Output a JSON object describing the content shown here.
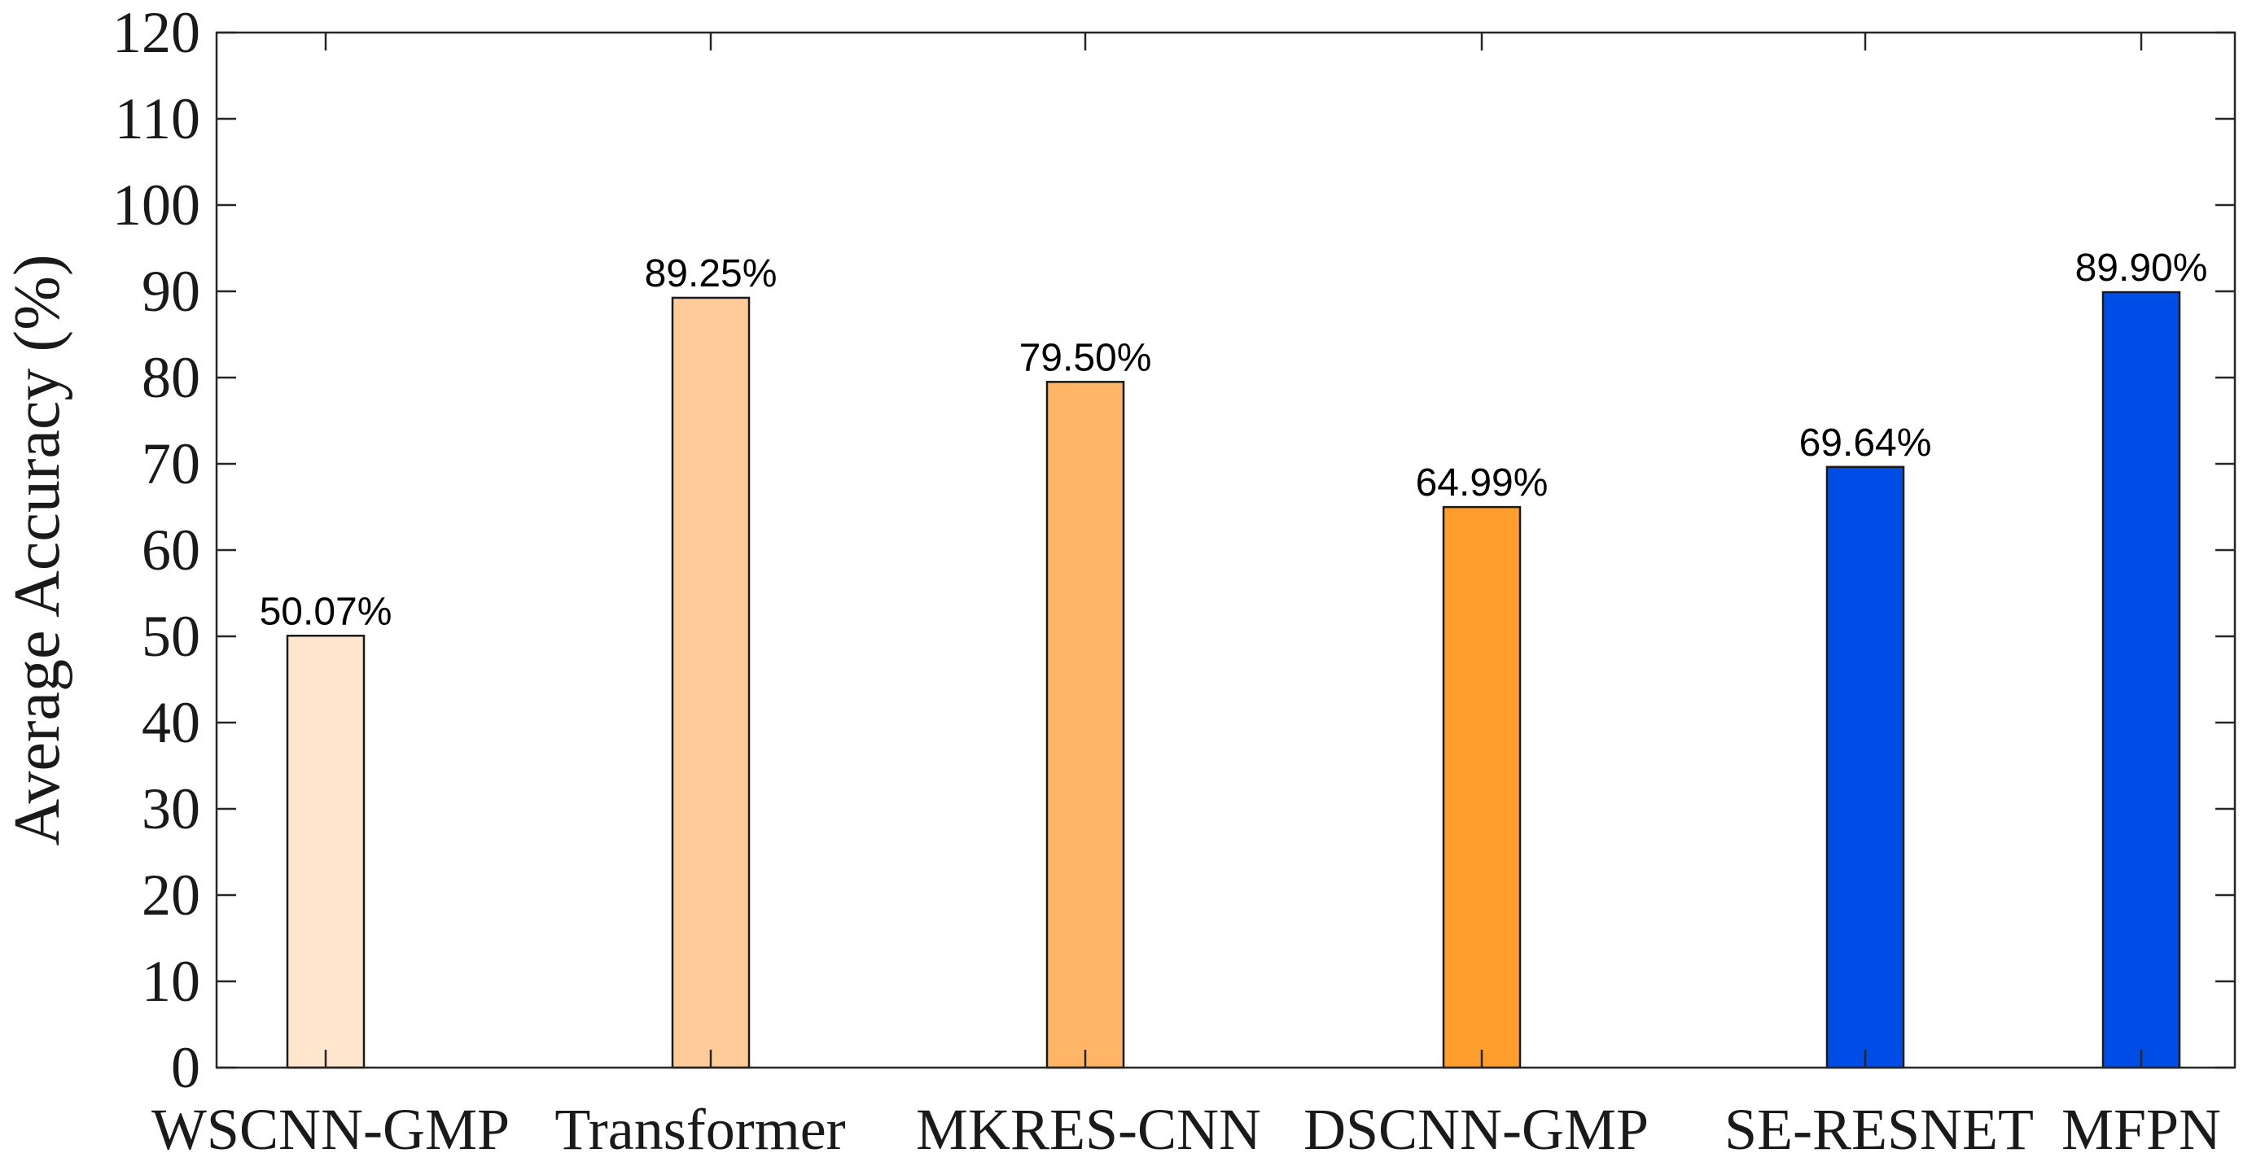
{
  "chart_data": {
    "type": "bar",
    "title": "",
    "xlabel": "",
    "ylabel": "Average Accuracy (%)",
    "ylim": [
      0,
      120
    ],
    "yticks": [
      0,
      10,
      20,
      30,
      40,
      50,
      60,
      70,
      80,
      90,
      100,
      110,
      120
    ],
    "grid": false,
    "legend": "none",
    "categories": [
      "WSCNN-GMP",
      "Transformer",
      "MKRES-CNN",
      "DSCNN-GMP",
      "SE-RESNET",
      "MFPN"
    ],
    "values": [
      50.07,
      89.25,
      79.5,
      64.99,
      69.64,
      89.9
    ],
    "data_labels": [
      "50.07%",
      "89.25%",
      "79.50%",
      "64.99%",
      "69.64%",
      "89.90%"
    ],
    "colors": [
      "#FFE6CC",
      "#FFCC99",
      "#FFB566",
      "#FF9E2C",
      "#004CE6",
      "#004CE6"
    ]
  }
}
